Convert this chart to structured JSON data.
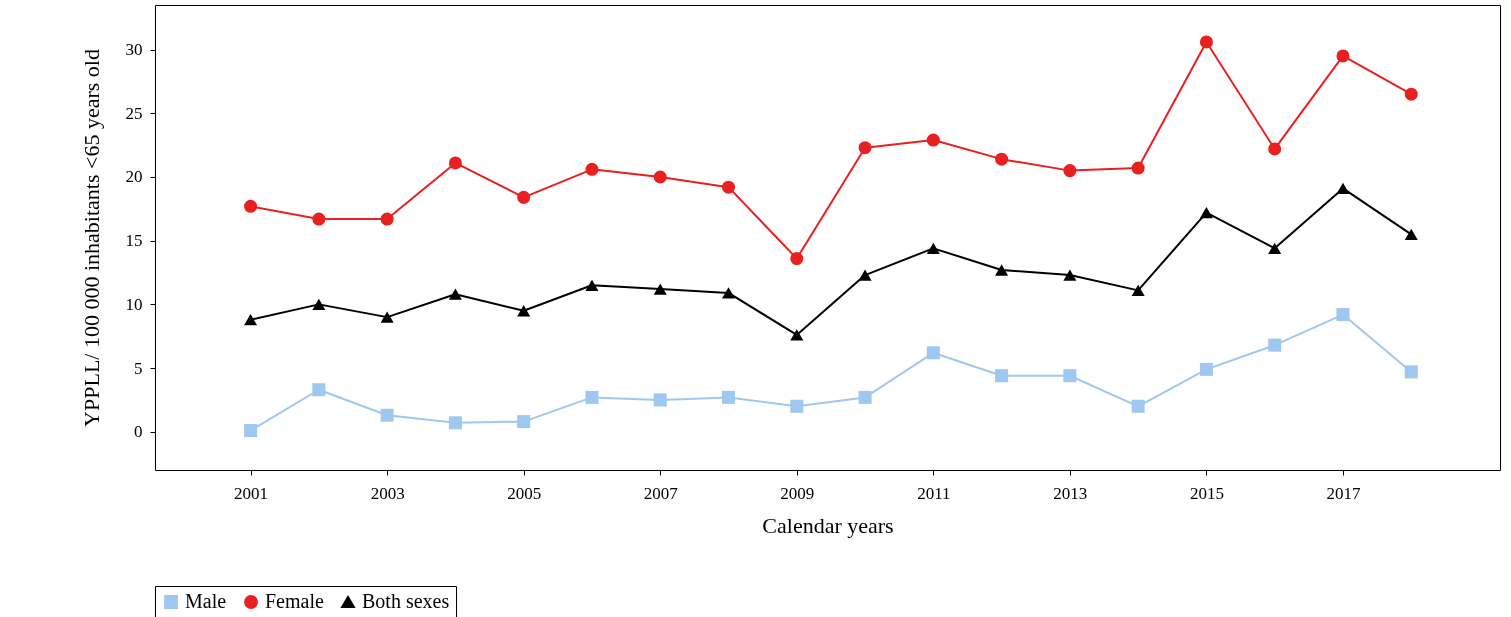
{
  "chart_data": {
    "type": "line",
    "xlabel": "Calendar years",
    "ylabel": "YPPLL/ 100 000 inhabitants <65 years old",
    "x": [
      2001,
      2002,
      2003,
      2004,
      2005,
      2006,
      2007,
      2008,
      2009,
      2010,
      2011,
      2012,
      2013,
      2014,
      2015,
      2016,
      2017,
      2018
    ],
    "series": [
      {
        "name": "Male",
        "color": "#9fc8f0",
        "marker": "square",
        "values": [
          0.1,
          3.3,
          1.3,
          0.7,
          0.8,
          2.7,
          2.5,
          2.7,
          2.0,
          2.7,
          6.2,
          4.4,
          4.4,
          2.0,
          4.9,
          6.8,
          9.2,
          4.7
        ]
      },
      {
        "name": "Female",
        "color": "#e8201f",
        "marker": "circle",
        "values": [
          17.7,
          16.7,
          16.7,
          21.1,
          18.4,
          20.6,
          20.0,
          19.2,
          13.6,
          22.3,
          22.9,
          21.4,
          20.5,
          20.7,
          30.6,
          22.2,
          29.5,
          26.5
        ]
      },
      {
        "name": "Both sexes",
        "color": "#000000",
        "marker": "triangle",
        "values": [
          8.8,
          10.0,
          9.0,
          10.8,
          9.5,
          11.5,
          11.2,
          10.9,
          7.6,
          12.3,
          14.4,
          12.7,
          12.3,
          11.1,
          17.2,
          14.4,
          19.1,
          15.5
        ]
      }
    ],
    "xlim": [
      1999.6,
      2019.3
    ],
    "xticks": [
      2001,
      2003,
      2005,
      2007,
      2009,
      2011,
      2013,
      2015,
      2017
    ],
    "ylim": [
      -3,
      33.5
    ],
    "yticks": [
      0,
      5,
      10,
      15,
      20,
      25,
      30
    ],
    "grid": false,
    "legend": "bottom",
    "line_style": "solid"
  }
}
